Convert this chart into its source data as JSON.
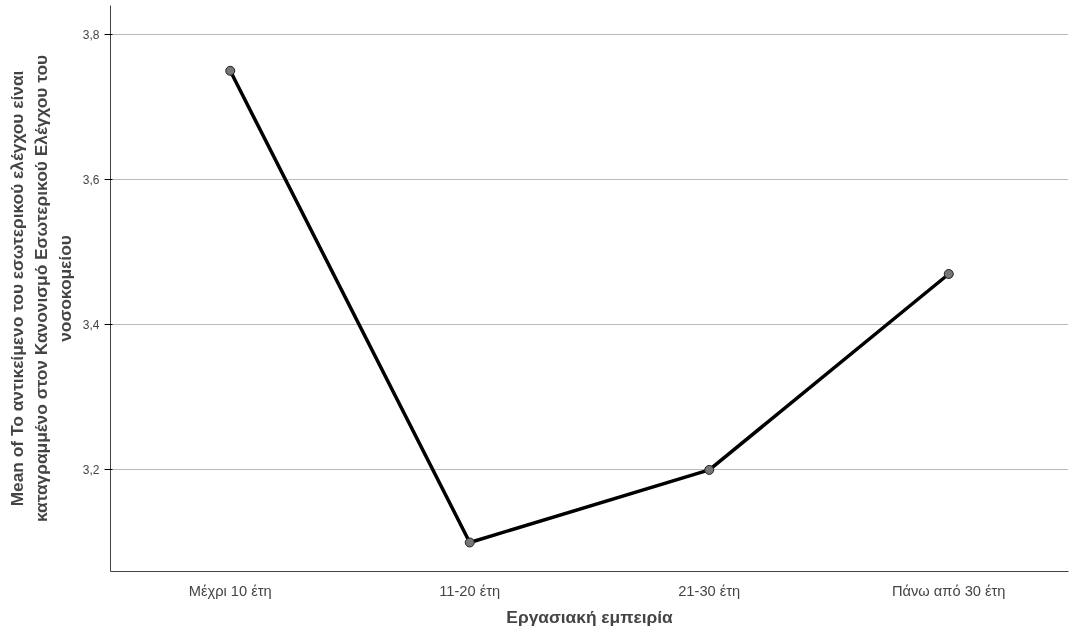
{
  "chart_data": {
    "type": "line",
    "xlabel": "Εργασιακή εμπειρία",
    "ylabel": "Mean of Το αντικείμενο του εσωτερικού ελέγχου είναι καταγραμμένο στον Κανονισμό Εσωτερικού Ελέγχου του νοσοκομείου",
    "categories": [
      "Μέχρι 10 έτη",
      "11-20 έτη",
      "21-30 έτη",
      "Πάνω από 30 έτη"
    ],
    "series": [
      {
        "color": "#000000",
        "values": [
          3.75,
          3.1,
          3.2,
          3.47
        ]
      }
    ],
    "ylim": [
      3.06,
      3.84
    ],
    "yticks": [
      {
        "value": 3.2,
        "label": "3,2"
      },
      {
        "value": 3.4,
        "label": "3,4"
      },
      {
        "value": 3.6,
        "label": "3,6"
      },
      {
        "value": 3.8,
        "label": "3,8"
      }
    ],
    "grid": "y",
    "marker": "circle",
    "line_style": "solid"
  }
}
